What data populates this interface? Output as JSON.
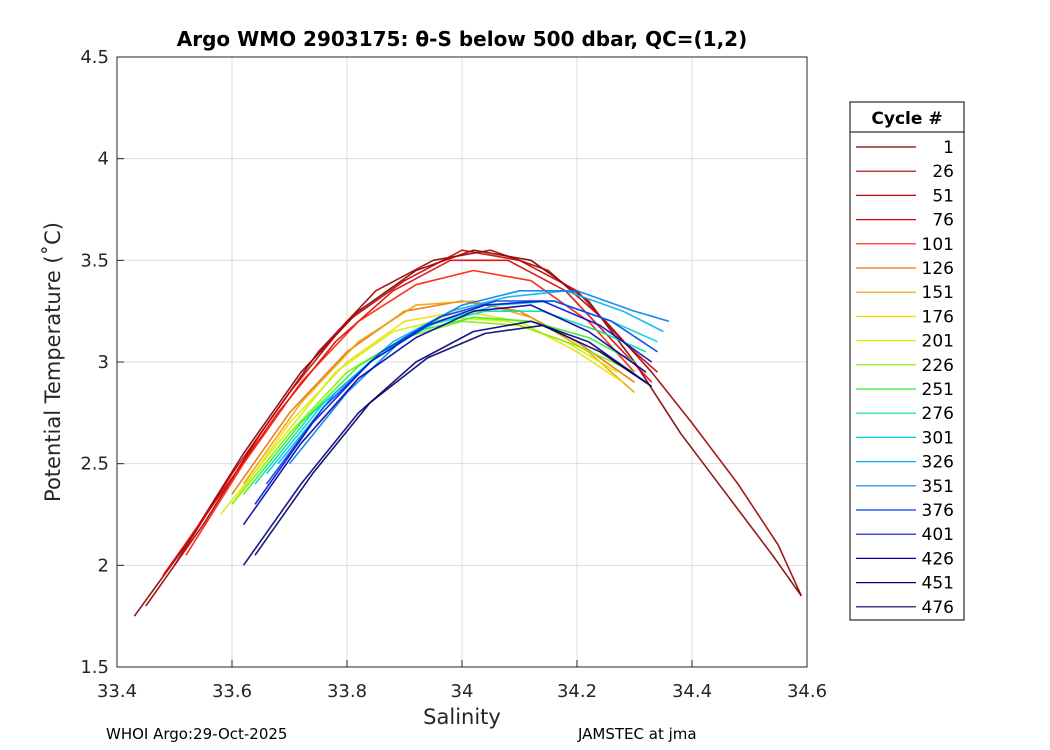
{
  "chart_data": {
    "type": "line",
    "title": "Argo WMO 2903175: θ-S below 500 dbar,  QC=(1,2)",
    "xlabel": "Salinity",
    "ylabel": "Potential Temperature (˚C)",
    "xlim": [
      33.4,
      34.6
    ],
    "ylim": [
      1.5,
      4.5
    ],
    "xticks": [
      "33.4",
      "33.6",
      "33.8",
      "34",
      "34.2",
      "34.4",
      "34.6"
    ],
    "yticks": [
      "1.5",
      "2",
      "2.5",
      "3",
      "3.5",
      "4",
      "4.5"
    ],
    "grid": true,
    "legend_title": "Cycle #",
    "legend_position": "right",
    "series": [
      {
        "name": "1",
        "color": "#800000",
        "salinity": [
          33.43,
          33.52,
          33.62,
          33.72,
          33.82,
          33.92,
          34.02,
          34.12,
          34.22,
          34.3,
          34.38,
          34.46,
          34.54,
          34.59
        ],
        "theta": [
          1.75,
          2.1,
          2.55,
          2.95,
          3.25,
          3.45,
          3.55,
          3.5,
          3.3,
          3.0,
          2.65,
          2.35,
          2.05,
          1.85
        ]
      },
      {
        "name": "26",
        "color": "#A00000",
        "salinity": [
          33.45,
          33.55,
          33.65,
          33.75,
          33.85,
          33.95,
          34.05,
          34.15,
          34.25,
          34.33,
          34.4,
          34.48,
          34.55,
          34.59
        ],
        "theta": [
          1.8,
          2.2,
          2.65,
          3.05,
          3.35,
          3.5,
          3.55,
          3.45,
          3.2,
          2.95,
          2.7,
          2.4,
          2.1,
          1.85
        ]
      },
      {
        "name": "51",
        "color": "#C00000",
        "salinity": [
          33.5,
          33.6,
          33.7,
          33.8,
          33.9,
          34.0,
          34.1,
          34.2,
          34.28,
          34.34
        ],
        "theta": [
          2.0,
          2.45,
          2.85,
          3.2,
          3.4,
          3.55,
          3.5,
          3.35,
          3.1,
          2.95
        ]
      },
      {
        "name": "76",
        "color": "#E00000",
        "salinity": [
          33.48,
          33.58,
          33.68,
          33.78,
          33.88,
          33.98,
          34.08,
          34.18,
          34.28,
          34.33
        ],
        "theta": [
          1.95,
          2.35,
          2.75,
          3.1,
          3.35,
          3.5,
          3.5,
          3.35,
          3.05,
          2.9
        ]
      },
      {
        "name": "101",
        "color": "#FF1A00",
        "salinity": [
          33.52,
          33.62,
          33.72,
          33.82,
          33.92,
          34.02,
          34.12,
          34.22,
          34.3
        ],
        "theta": [
          2.05,
          2.5,
          2.9,
          3.2,
          3.38,
          3.45,
          3.4,
          3.2,
          2.95
        ]
      },
      {
        "name": "126",
        "color": "#F07000",
        "salinity": [
          33.6,
          33.7,
          33.8,
          33.9,
          34.0,
          34.1,
          34.2,
          34.3
        ],
        "theta": [
          2.35,
          2.75,
          3.05,
          3.25,
          3.3,
          3.25,
          3.1,
          2.9
        ]
      },
      {
        "name": "151",
        "color": "#F0A000",
        "salinity": [
          33.62,
          33.72,
          33.82,
          33.92,
          34.02,
          34.12,
          34.22,
          34.3
        ],
        "theta": [
          2.4,
          2.8,
          3.1,
          3.28,
          3.3,
          3.22,
          3.05,
          2.85
        ]
      },
      {
        "name": "176",
        "color": "#F0E000",
        "salinity": [
          33.6,
          33.7,
          33.8,
          33.9,
          34.0,
          34.1,
          34.2,
          34.28
        ],
        "theta": [
          2.3,
          2.7,
          3.0,
          3.2,
          3.25,
          3.2,
          3.05,
          2.9
        ]
      },
      {
        "name": "201",
        "color": "#D0F000",
        "salinity": [
          33.58,
          33.68,
          33.78,
          33.88,
          33.98,
          34.08,
          34.18,
          34.27
        ],
        "theta": [
          2.25,
          2.6,
          2.95,
          3.15,
          3.22,
          3.2,
          3.1,
          2.95
        ]
      },
      {
        "name": "226",
        "color": "#80F000",
        "salinity": [
          33.6,
          33.7,
          33.8,
          33.9,
          34.0,
          34.1,
          34.2,
          34.3
        ],
        "theta": [
          2.3,
          2.65,
          2.95,
          3.12,
          3.2,
          3.18,
          3.08,
          2.95
        ]
      },
      {
        "name": "251",
        "color": "#30F030",
        "salinity": [
          33.62,
          33.72,
          33.82,
          33.92,
          34.02,
          34.12,
          34.22,
          34.3
        ],
        "theta": [
          2.35,
          2.7,
          2.98,
          3.15,
          3.22,
          3.2,
          3.12,
          3.0
        ]
      },
      {
        "name": "276",
        "color": "#00E0A0",
        "salinity": [
          33.64,
          33.74,
          33.84,
          33.94,
          34.04,
          34.14,
          34.24,
          34.32
        ],
        "theta": [
          2.4,
          2.75,
          3.0,
          3.18,
          3.25,
          3.25,
          3.15,
          3.05
        ]
      },
      {
        "name": "301",
        "color": "#00D0D0",
        "salinity": [
          33.66,
          33.76,
          33.86,
          33.96,
          34.06,
          34.16,
          34.26,
          34.34
        ],
        "theta": [
          2.45,
          2.8,
          3.05,
          3.2,
          3.28,
          3.3,
          3.2,
          3.1
        ]
      },
      {
        "name": "326",
        "color": "#00B0F0",
        "salinity": [
          33.68,
          33.78,
          33.88,
          33.98,
          34.08,
          34.18,
          34.28,
          34.35
        ],
        "theta": [
          2.5,
          2.85,
          3.1,
          3.25,
          3.32,
          3.35,
          3.25,
          3.15
        ]
      },
      {
        "name": "351",
        "color": "#0080F0",
        "salinity": [
          33.7,
          33.8,
          33.9,
          34.0,
          34.1,
          34.2,
          34.3,
          34.36
        ],
        "theta": [
          2.5,
          2.85,
          3.12,
          3.28,
          3.35,
          3.35,
          3.25,
          3.2
        ]
      },
      {
        "name": "376",
        "color": "#0040F0",
        "salinity": [
          33.66,
          33.76,
          33.86,
          33.96,
          34.06,
          34.16,
          34.26,
          34.34
        ],
        "theta": [
          2.4,
          2.78,
          3.05,
          3.22,
          3.3,
          3.3,
          3.2,
          3.05
        ]
      },
      {
        "name": "401",
        "color": "#0010D0",
        "salinity": [
          33.64,
          33.74,
          33.84,
          33.94,
          34.04,
          34.14,
          34.24,
          34.33
        ],
        "theta": [
          2.3,
          2.7,
          3.0,
          3.18,
          3.28,
          3.3,
          3.18,
          3.0
        ]
      },
      {
        "name": "426",
        "color": "#0000A0",
        "salinity": [
          33.62,
          33.72,
          33.82,
          33.92,
          34.02,
          34.12,
          34.22,
          34.32
        ],
        "theta": [
          2.2,
          2.6,
          2.92,
          3.12,
          3.25,
          3.28,
          3.15,
          2.95
        ]
      },
      {
        "name": "451",
        "color": "#000080",
        "salinity": [
          33.62,
          33.72,
          33.82,
          33.92,
          34.02,
          34.12,
          34.22,
          34.32
        ],
        "theta": [
          2.0,
          2.4,
          2.75,
          3.0,
          3.15,
          3.2,
          3.1,
          2.9
        ]
      },
      {
        "name": "476",
        "color": "#000060",
        "salinity": [
          33.64,
          33.74,
          33.84,
          33.94,
          34.04,
          34.14,
          34.24,
          34.33
        ],
        "theta": [
          2.05,
          2.45,
          2.8,
          3.02,
          3.14,
          3.18,
          3.05,
          2.88
        ]
      }
    ]
  },
  "footer": {
    "left": "WHOI Argo:29-Oct-2025",
    "right": "JAMSTEC at jma"
  }
}
